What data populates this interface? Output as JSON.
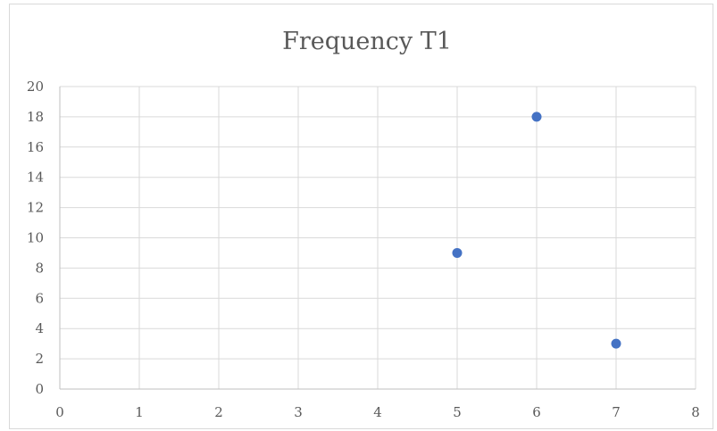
{
  "chart_data": {
    "type": "scatter",
    "title": "Frequency T1",
    "xlabel": "",
    "ylabel": "",
    "xlim": [
      0,
      8
    ],
    "ylim": [
      0,
      20
    ],
    "xticks": [
      0,
      1,
      2,
      3,
      4,
      5,
      6,
      7,
      8
    ],
    "yticks": [
      0,
      2,
      4,
      6,
      8,
      10,
      12,
      14,
      16,
      18,
      20
    ],
    "grid": true,
    "legend": "none",
    "series": [
      {
        "color": "#4472c4",
        "points": [
          {
            "x": 5,
            "y": 9
          },
          {
            "x": 6,
            "y": 18
          },
          {
            "x": 7,
            "y": 3
          }
        ]
      }
    ]
  }
}
